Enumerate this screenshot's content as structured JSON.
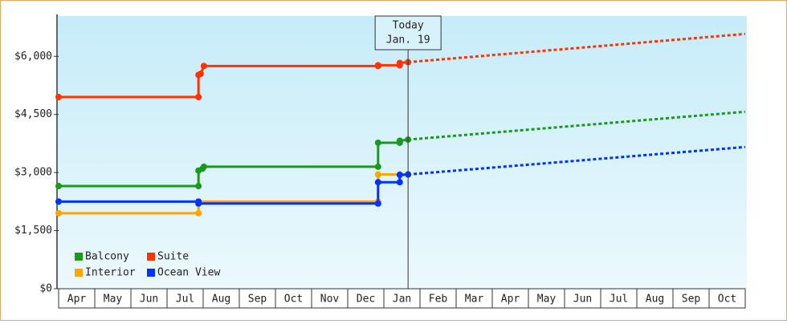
{
  "chart_data": {
    "type": "step-line",
    "xlim": [
      0,
      19
    ],
    "ylim": [
      0,
      7000
    ],
    "xticks": [
      {
        "value": 0.5,
        "label": "Apr"
      },
      {
        "value": 1.5,
        "label": "May"
      },
      {
        "value": 2.5,
        "label": "Jun"
      },
      {
        "value": 3.5,
        "label": "Jul"
      },
      {
        "value": 4.5,
        "label": "Aug"
      },
      {
        "value": 5.5,
        "label": "Sep"
      },
      {
        "value": 6.5,
        "label": "Oct"
      },
      {
        "value": 7.5,
        "label": "Nov"
      },
      {
        "value": 8.5,
        "label": "Dec"
      },
      {
        "value": 9.5,
        "label": "Jan"
      },
      {
        "value": 10.5,
        "label": "Feb"
      },
      {
        "value": 11.5,
        "label": "Mar"
      },
      {
        "value": 12.5,
        "label": "Apr"
      },
      {
        "value": 13.5,
        "label": "May"
      },
      {
        "value": 14.5,
        "label": "Jun"
      },
      {
        "value": 15.5,
        "label": "Jul"
      },
      {
        "value": 16.5,
        "label": "Aug"
      },
      {
        "value": 17.5,
        "label": "Sep"
      },
      {
        "value": 18.5,
        "label": "Oct"
      }
    ],
    "yticks": [
      {
        "value": 0,
        "label": "$0"
      },
      {
        "value": 1500,
        "label": "$1,500"
      },
      {
        "value": 3000,
        "label": "$3,000"
      },
      {
        "value": 4500,
        "label": "$4,500"
      },
      {
        "value": 6000,
        "label": "$6,000"
      }
    ],
    "today": {
      "x": 9.67,
      "label": [
        "Today",
        "Jan. 19"
      ]
    },
    "series": [
      {
        "name": "Balcony",
        "color": "#1a9a1a",
        "x": [
          0,
          3.87,
          3.87,
          3.98,
          4.02,
          8.84,
          8.84,
          9.44,
          9.44,
          9.67
        ],
        "values": [
          2650,
          2650,
          3050,
          3100,
          3150,
          3150,
          3770,
          3770,
          3820,
          3850
        ],
        "forecast": {
          "x": [
            9.67,
            19
          ],
          "values": [
            3850,
            4570
          ]
        }
      },
      {
        "name": "Suite",
        "color": "#ff3300",
        "x": [
          0,
          3.87,
          3.87,
          3.93,
          4.02,
          8.84,
          8.84,
          9.44,
          9.44,
          9.67
        ],
        "values": [
          4950,
          4950,
          5520,
          5550,
          5750,
          5750,
          5770,
          5770,
          5830,
          5850
        ],
        "forecast": {
          "x": [
            9.67,
            19
          ],
          "values": [
            5850,
            6580
          ]
        }
      },
      {
        "name": "Interior",
        "color": "#ffa500",
        "x": [
          0,
          3.87,
          3.87,
          8.84,
          8.84,
          9.44
        ],
        "values": [
          1950,
          1950,
          2250,
          2250,
          2950,
          2950
        ]
      },
      {
        "name": "Ocean View",
        "color": "#0033ff",
        "x": [
          0,
          3.87,
          3.87,
          8.84,
          8.84,
          9.44,
          9.44,
          9.67
        ],
        "values": [
          2250,
          2250,
          2200,
          2200,
          2750,
          2750,
          2940,
          2950
        ],
        "forecast": {
          "x": [
            9.67,
            19
          ],
          "values": [
            2950,
            3660
          ]
        }
      }
    ]
  }
}
